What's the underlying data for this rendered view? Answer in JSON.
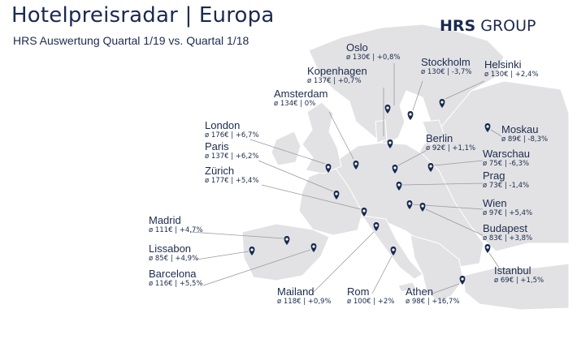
{
  "header": {
    "title": "Hotelpreisradar | Europa",
    "subtitle": "HRS Auswertung Quartal 1/19 vs. Quartal 1/18",
    "brand_bold": "HRS",
    "brand_rest": " GROUP"
  },
  "colors": {
    "land": "#e2e2e4",
    "sea": "#ffffff",
    "marker": "#16294f",
    "text": "#1b2a4e",
    "leader_line": "#9a9aa0"
  },
  "cities": [
    {
      "key": "oslo",
      "name": "Oslo",
      "stat": "ø 130€ | +0,8%"
    },
    {
      "key": "kopenhagen",
      "name": "Kopenhagen",
      "stat": "ø 137€ | +0,7%"
    },
    {
      "key": "stockholm",
      "name": "Stockholm",
      "stat": "ø 130€ | -3,7%"
    },
    {
      "key": "helsinki",
      "name": "Helsinki",
      "stat": "ø 130€ | +2,4%"
    },
    {
      "key": "amsterdam",
      "name": "Amsterdam",
      "stat": "ø 134€ | 0%"
    },
    {
      "key": "london",
      "name": "London",
      "stat": "ø 176€ | +6,7%"
    },
    {
      "key": "paris",
      "name": "Paris",
      "stat": "ø 137€ | +6,2%"
    },
    {
      "key": "zurich",
      "name": "Zürich",
      "stat": "ø 177€ | +5,4%"
    },
    {
      "key": "berlin",
      "name": "Berlin",
      "stat": "ø 92€ | +1,1%"
    },
    {
      "key": "moskau",
      "name": "Moskau",
      "stat": "ø 89€ | -8,3%"
    },
    {
      "key": "warschau",
      "name": "Warschau",
      "stat": "ø 75€ | -6,3%"
    },
    {
      "key": "prag",
      "name": "Prag",
      "stat": "ø 73€ | -1,4%"
    },
    {
      "key": "wien",
      "name": "Wien",
      "stat": "ø 97€ | +5,4%"
    },
    {
      "key": "budapest",
      "name": "Budapest",
      "stat": "ø 83€ | +3,8%"
    },
    {
      "key": "madrid",
      "name": "Madrid",
      "stat": "ø 111€ | +4,7%"
    },
    {
      "key": "lissabon",
      "name": "Lissabon",
      "stat": "ø 85€ | +4,9%"
    },
    {
      "key": "barcelona",
      "name": "Barcelona",
      "stat": "ø 116€ | +5,5%"
    },
    {
      "key": "istanbul",
      "name": "Istanbul",
      "stat": "ø 69€ | +1,5%"
    },
    {
      "key": "mailand",
      "name": "Mailand",
      "stat": "ø 118€ | +0,9%"
    },
    {
      "key": "rom",
      "name": "Rom",
      "stat": "ø 100€ | +2%"
    },
    {
      "key": "athen",
      "name": "Athen",
      "stat": "ø 98€ | +16,7%"
    }
  ]
}
